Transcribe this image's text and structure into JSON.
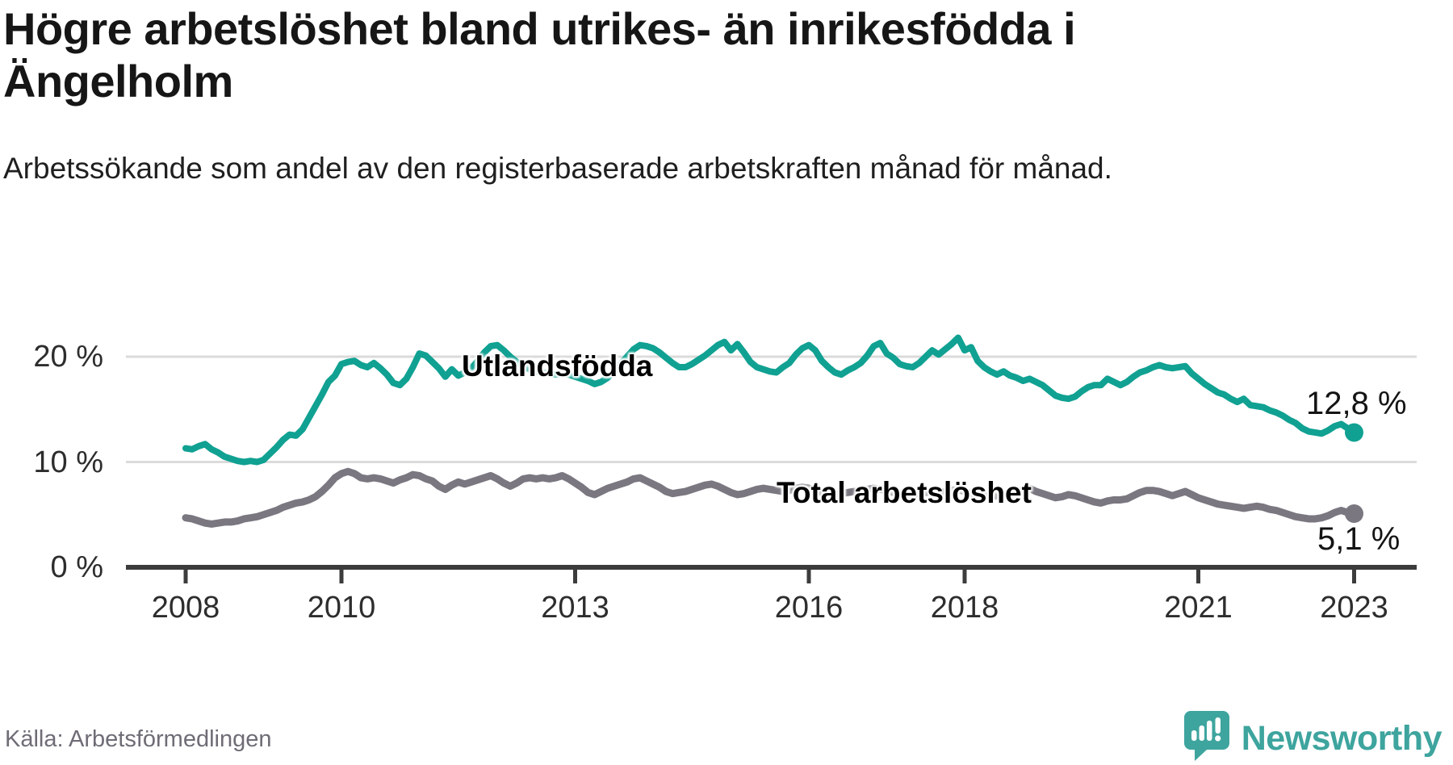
{
  "title": "Högre arbetslöshet bland utrikes- än inrikesfödda i Ängelholm",
  "subtitle": "Arbetssökande som andel av den registerbaserade arbetskraften månad för månad.",
  "source": "Källa: Arbetsförmedlingen",
  "branding": {
    "name": "Newsworthy"
  },
  "colors": {
    "utlandsfodda_line": "#10a192",
    "total_line": "#7a7780",
    "gridline": "#dbdbdb",
    "axis": "#3c3c3c",
    "tick_text": "#2d2d2d",
    "title_text": "#161616",
    "muted_text": "#6f6c76",
    "brand_teal": "#3ea49e"
  },
  "chart_data": {
    "type": "line",
    "x_interval": "monthly",
    "x_start": "2008-01",
    "x_end": "2023-01",
    "x_start_year": 2008,
    "x_ticks": [
      2008,
      2010,
      2013,
      2016,
      2018,
      2021,
      2023
    ],
    "y_ticks": [
      {
        "value": 0,
        "label": "0 %"
      },
      {
        "value": 10,
        "label": "10 %"
      },
      {
        "value": 20,
        "label": "20 %"
      }
    ],
    "ylim": [
      0,
      26
    ],
    "grid": "horizontal-only",
    "legend": "inline-labels-on-lines",
    "series": [
      {
        "id": "total-arbetsloshet",
        "name": "Total arbetslöshet",
        "color": "#7a7780",
        "end_label": "5,1 %",
        "end_value": 5.1,
        "values": [
          4.7,
          4.6,
          4.4,
          4.2,
          4.1,
          4.2,
          4.3,
          4.3,
          4.4,
          4.6,
          4.7,
          4.8,
          5.0,
          5.2,
          5.4,
          5.7,
          5.9,
          6.1,
          6.2,
          6.4,
          6.7,
          7.2,
          7.8,
          8.5,
          8.9,
          9.1,
          8.9,
          8.5,
          8.4,
          8.5,
          8.4,
          8.2,
          8.0,
          8.3,
          8.5,
          8.8,
          8.7,
          8.4,
          8.2,
          7.7,
          7.4,
          7.8,
          8.1,
          7.9,
          8.1,
          8.3,
          8.5,
          8.7,
          8.4,
          8.0,
          7.7,
          8.0,
          8.4,
          8.5,
          8.4,
          8.5,
          8.4,
          8.5,
          8.7,
          8.4,
          8.0,
          7.6,
          7.1,
          6.9,
          7.2,
          7.5,
          7.7,
          7.9,
          8.1,
          8.4,
          8.5,
          8.2,
          7.9,
          7.6,
          7.2,
          7.0,
          7.1,
          7.2,
          7.4,
          7.6,
          7.8,
          7.9,
          7.7,
          7.4,
          7.1,
          6.9,
          7.0,
          7.2,
          7.4,
          7.5,
          7.4,
          7.3,
          7.2,
          7.3,
          7.5,
          7.6,
          7.5,
          7.3,
          7.1,
          7.0,
          6.9,
          7.0,
          7.1,
          7.2,
          7.3,
          7.4,
          7.5,
          7.4,
          7.3,
          7.1,
          7.0,
          6.9,
          6.9,
          7.0,
          7.1,
          7.2,
          7.1,
          7.2,
          7.3,
          7.4,
          7.2,
          7.0,
          6.9,
          6.8,
          6.7,
          6.8,
          6.9,
          7.0,
          7.2,
          7.3,
          7.5,
          7.2,
          7.0,
          6.8,
          6.6,
          6.7,
          6.9,
          6.8,
          6.6,
          6.4,
          6.2,
          6.1,
          6.3,
          6.4,
          6.4,
          6.5,
          6.8,
          7.1,
          7.3,
          7.3,
          7.2,
          7.0,
          6.8,
          7.0,
          7.2,
          6.9,
          6.6,
          6.4,
          6.2,
          6.0,
          5.9,
          5.8,
          5.7,
          5.6,
          5.7,
          5.8,
          5.7,
          5.5,
          5.4,
          5.2,
          5.0,
          4.8,
          4.7,
          4.6,
          4.6,
          4.7,
          4.9,
          5.2,
          5.4,
          5.2,
          5.1
        ]
      },
      {
        "id": "utlandsfodda",
        "name": "Utlandsfödda",
        "color": "#10a192",
        "end_label": "12,8 %",
        "end_value": 12.8,
        "values": [
          11.3,
          11.2,
          11.5,
          11.7,
          11.2,
          10.9,
          10.5,
          10.3,
          10.1,
          10.0,
          10.1,
          10.0,
          10.2,
          10.8,
          11.4,
          12.1,
          12.6,
          12.5,
          13.1,
          14.2,
          15.3,
          16.4,
          17.6,
          18.2,
          19.3,
          19.5,
          19.6,
          19.2,
          19.0,
          19.4,
          18.9,
          18.3,
          17.5,
          17.3,
          17.9,
          19.0,
          20.3,
          20.1,
          19.5,
          18.9,
          18.1,
          18.8,
          18.2,
          18.5,
          18.9,
          19.6,
          20.4,
          21.0,
          21.1,
          20.6,
          20.0,
          19.5,
          19.1,
          18.8,
          18.6,
          18.5,
          18.4,
          18.3,
          18.4,
          18.3,
          18.1,
          17.9,
          17.7,
          17.4,
          17.6,
          18.0,
          18.6,
          19.3,
          20.0,
          20.7,
          21.1,
          21.0,
          20.8,
          20.4,
          19.9,
          19.4,
          19.0,
          19.0,
          19.3,
          19.7,
          20.1,
          20.6,
          21.1,
          21.4,
          20.6,
          21.2,
          20.4,
          19.5,
          19.0,
          18.8,
          18.6,
          18.5,
          19.0,
          19.4,
          20.2,
          20.8,
          21.1,
          20.6,
          19.6,
          19.0,
          18.5,
          18.3,
          18.7,
          19.0,
          19.4,
          20.1,
          21.0,
          21.3,
          20.3,
          19.9,
          19.3,
          19.1,
          19.0,
          19.4,
          20.0,
          20.6,
          20.2,
          20.7,
          21.2,
          21.8,
          20.6,
          20.9,
          19.6,
          19.0,
          18.6,
          18.3,
          18.6,
          18.2,
          18.0,
          17.7,
          17.9,
          17.6,
          17.3,
          16.8,
          16.3,
          16.1,
          16.0,
          16.2,
          16.7,
          17.1,
          17.3,
          17.3,
          17.9,
          17.6,
          17.3,
          17.6,
          18.1,
          18.5,
          18.7,
          19.0,
          19.2,
          19.0,
          18.9,
          19.0,
          19.1,
          18.4,
          17.9,
          17.4,
          17.0,
          16.6,
          16.4,
          16.0,
          15.7,
          16.0,
          15.4,
          15.3,
          15.2,
          14.9,
          14.7,
          14.4,
          14.0,
          13.7,
          13.2,
          12.9,
          12.8,
          12.7,
          13.0,
          13.4,
          13.6,
          13.2,
          12.8
        ]
      }
    ]
  }
}
